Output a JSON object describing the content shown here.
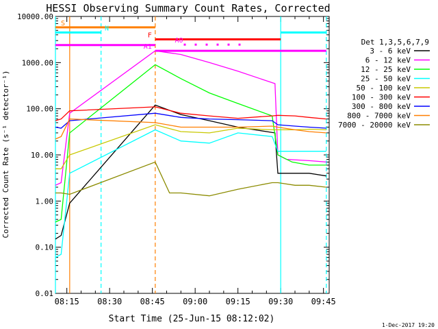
{
  "chart_data": {
    "type": "line",
    "title": "HESSI Observing Summary Count Rates, Corrected",
    "xlabel": "Start Time (25-Jun-15 08:12:02)",
    "ylabel": "Corrected Count Rate (s⁻¹ detector⁻¹)",
    "footer": "1-Dec-2017 19:20",
    "yscale": "log",
    "ylim": [
      0.01,
      10000
    ],
    "xlim_minutes": [
      491,
      587
    ],
    "y_ticks": [
      {
        "v": 10000,
        "label": "10000.00"
      },
      {
        "v": 1000,
        "label": "1000.00"
      },
      {
        "v": 100,
        "label": "100.00"
      },
      {
        "v": 10,
        "label": "10.00"
      },
      {
        "v": 1,
        "label": "1.00"
      },
      {
        "v": 0.1,
        "label": "0.10"
      },
      {
        "v": 0.01,
        "label": "0.01"
      }
    ],
    "x_ticks": [
      {
        "t": 495,
        "label": "08:15"
      },
      {
        "t": 510,
        "label": "08:30"
      },
      {
        "t": 525,
        "label": "08:45"
      },
      {
        "t": 540,
        "label": "09:00"
      },
      {
        "t": 555,
        "label": "09:15"
      },
      {
        "t": 570,
        "label": "09:30"
      },
      {
        "t": 585,
        "label": "09:45"
      }
    ],
    "legend_title": "Det 1,3,5,6,7,9",
    "legend_position": "right",
    "series": [
      {
        "name": "3 - 6 keV",
        "color": "#000000",
        "x": [
          491,
          493,
          496,
          526,
          535,
          545,
          555,
          568,
          569,
          572,
          580,
          586
        ],
        "y": [
          0.15,
          0.18,
          0.9,
          120,
          75,
          55,
          40,
          30,
          4,
          4,
          4,
          3.5
        ]
      },
      {
        "name": "6 - 12 keV",
        "color": "#ff00ff",
        "x": [
          491,
          493,
          496,
          526,
          535,
          545,
          555,
          568,
          569,
          572,
          580,
          586
        ],
        "y": [
          2.2,
          2.5,
          80,
          1800,
          1500,
          1000,
          650,
          350,
          10,
          8,
          7.5,
          7
        ]
      },
      {
        "name": "12 - 25 keV",
        "color": "#00ff00",
        "x": [
          491,
          493,
          496,
          526,
          535,
          545,
          555,
          567,
          569,
          574,
          580,
          586
        ],
        "y": [
          0.35,
          0.4,
          30,
          900,
          450,
          220,
          130,
          70,
          10,
          7,
          6,
          6
        ]
      },
      {
        "name": "25 - 50 keV",
        "color": "#00ffff",
        "x": [
          491,
          493,
          496,
          526,
          535,
          545,
          555,
          567,
          569,
          575,
          580,
          586
        ],
        "y": [
          0.06,
          0.07,
          4,
          35,
          20,
          18,
          30,
          25,
          12,
          12,
          12,
          12
        ]
      },
      {
        "name": "50 - 100 keV",
        "color": "#c8c800",
        "x": [
          491,
          493,
          496,
          526,
          535,
          545,
          555,
          567,
          569,
          575,
          580,
          586
        ],
        "y": [
          5,
          5,
          10,
          45,
          32,
          30,
          38,
          35,
          35,
          35,
          36,
          35
        ]
      },
      {
        "name": "100 - 300 keV",
        "color": "#ff0000",
        "x": [
          491,
          493,
          496,
          526,
          535,
          545,
          555,
          567,
          569,
          575,
          580,
          586
        ],
        "y": [
          55,
          60,
          90,
          110,
          80,
          70,
          62,
          70,
          72,
          70,
          65,
          60
        ]
      },
      {
        "name": "300 - 800 keV",
        "color": "#0000ff",
        "x": [
          491,
          493,
          496,
          526,
          535,
          545,
          555,
          567,
          569,
          575,
          580,
          586
        ],
        "y": [
          40,
          38,
          55,
          80,
          65,
          60,
          58,
          55,
          45,
          42,
          40,
          38
        ]
      },
      {
        "name": "800 - 7000 keV",
        "color": "#ff7f00",
        "x": [
          491,
          493,
          496,
          526,
          535,
          545,
          555,
          567,
          569,
          575,
          580,
          586
        ],
        "y": [
          22,
          25,
          60,
          50,
          40,
          40,
          40,
          42,
          40,
          35,
          32,
          30
        ]
      },
      {
        "name": "7000 - 20000 keV",
        "color": "#8b8b00",
        "x": [
          491,
          493,
          496,
          526,
          531,
          535,
          545,
          555,
          567,
          569,
          575,
          580,
          586
        ],
        "y": [
          1.5,
          1.5,
          1.4,
          7,
          1.5,
          1.5,
          1.3,
          1.8,
          2.5,
          2.5,
          2.2,
          2.2,
          2.0
        ]
      }
    ],
    "flag_bars": [
      {
        "label": "S",
        "color": "#ff7f00",
        "x_start": 491,
        "x_end": 526,
        "level": 5800
      },
      {
        "label": "N",
        "color": "#00ffff",
        "x_start": 491,
        "x_end": 507,
        "level": 4500
      },
      {
        "label": "",
        "color": "#00ffff",
        "x_start": 570,
        "x_end": 586,
        "level": 4500
      },
      {
        "label": "",
        "color": "#ff00ff",
        "x_start": 491,
        "x_end": 526,
        "level": 2400
      },
      {
        "label": "F",
        "color": "#ff0000",
        "x_start": 526,
        "x_end": 570,
        "level": 3200
      },
      {
        "label": "A0",
        "color": "#ff00ff",
        "x_start": 536,
        "x_end": 558,
        "level": 2450,
        "dotted": true
      },
      {
        "label": "A1",
        "color": "#ff00ff",
        "x_start": 526,
        "x_end": 586,
        "level": 1800
      }
    ],
    "vlines": [
      {
        "t": 496,
        "color": "#ff7f00",
        "dashed": false
      },
      {
        "t": 507,
        "color": "#00ffff",
        "dashed": true
      },
      {
        "t": 526,
        "color": "#ff7f00",
        "dashed": true
      },
      {
        "t": 570,
        "color": "#00ffff",
        "dashed": false
      },
      {
        "t": 586,
        "color": "#00ffff",
        "dashed": true
      },
      {
        "t": 491,
        "color": "#00ffff",
        "dashed": false
      }
    ]
  }
}
